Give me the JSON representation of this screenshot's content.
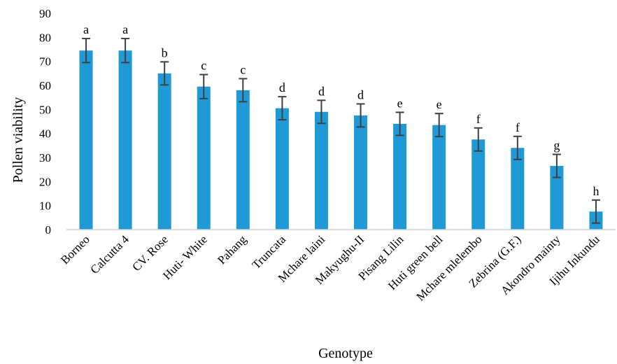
{
  "chart_data": {
    "type": "bar",
    "xlabel": "Genotype",
    "ylabel": "Pollen viability",
    "ylim": [
      0,
      90
    ],
    "yticks": [
      0,
      10,
      20,
      30,
      40,
      50,
      60,
      70,
      80,
      90
    ],
    "grid": false,
    "bar_color": "#1f9ad6",
    "categories": [
      "Borneo",
      "Calcutta 4",
      "CV. Rose",
      "Huti- White",
      "Pahang",
      "Truncata",
      "Mchare laini",
      "Makyughu-II",
      "Pisang Lilin",
      "Huti green bell",
      "Mchare mlelembo",
      "Zebrina (G.F.)",
      "Akondro mainty",
      "Ijihu Inkundu"
    ],
    "values": [
      74.5,
      74.5,
      65,
      59.5,
      58,
      50.5,
      49,
      47.5,
      44,
      43.5,
      37.5,
      34,
      26.5,
      7.5
    ],
    "errors": [
      5,
      5,
      4.8,
      5,
      4.8,
      4.8,
      4.8,
      4.8,
      4.8,
      4.8,
      4.8,
      4.8,
      4.8,
      4.8
    ],
    "letters": [
      "a",
      "a",
      "b",
      "c",
      "c",
      "d",
      "d",
      "d",
      "e",
      "e",
      "f",
      "f",
      "g",
      "h"
    ]
  }
}
